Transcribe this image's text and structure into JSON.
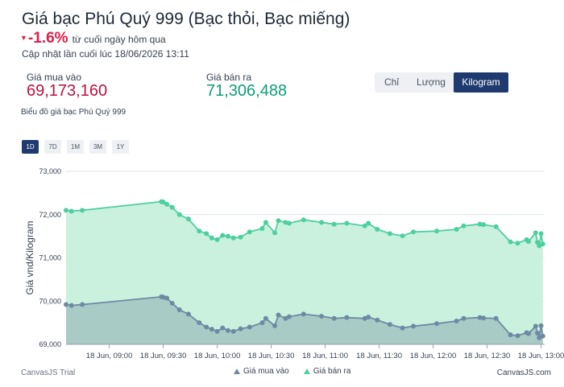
{
  "header": {
    "title": "Giá bạc Phú Quý 999 (Bạc thỏi, Bạc miếng)",
    "change_pct": "-1.6%",
    "change_since": "từ cuối ngày hôm qua",
    "updated": "Cập nhật lần cuối lúc 18/06/2026 13:11"
  },
  "prices": {
    "buy_label": "Giá mua vào",
    "buy_value": "69,173,160",
    "sell_label": "Giá bán ra",
    "sell_value": "71,306,488"
  },
  "units": [
    {
      "label": "Chỉ",
      "active": false
    },
    {
      "label": "Lượng",
      "active": false
    },
    {
      "label": "Kilogram",
      "active": true
    }
  ],
  "chart_caption": "Biểu đồ giá bạc Phú Quý 999",
  "ranges": [
    {
      "label": "1D",
      "active": true
    },
    {
      "label": "7D",
      "active": false
    },
    {
      "label": "1M",
      "active": false
    },
    {
      "label": "3M",
      "active": false
    },
    {
      "label": "1Y",
      "active": false
    }
  ],
  "colors": {
    "buy": "#6e8aa3",
    "sell": "#4ecf9f",
    "buy_fill": "#a8cbc6",
    "sell_fill": "#c9f1de",
    "accent": "#1e3a6e",
    "negative": "#e11d48"
  },
  "credits": {
    "left": "CanvasJS Trial",
    "right": "CanvasJS.com"
  },
  "chart_data": {
    "type": "area",
    "ylabel": "Giá vnd/Kilogram",
    "ylim": [
      69000,
      73000
    ],
    "y_ticks": [
      "73,000",
      "72,000",
      "71,000",
      "70,000",
      "69,000"
    ],
    "x_tick_labels": [
      "18 Jun, 09:00",
      "18 Jun, 09:30",
      "18 Jun, 10:00",
      "18 Jun, 10:30",
      "18 Jun, 11:00",
      "18 Jun, 11:30",
      "18 Jun, 12:00",
      "18 Jun, 12:30",
      "18 Jun, 13:00"
    ],
    "x_tick_minutes": [
      540,
      570,
      600,
      630,
      660,
      690,
      720,
      750,
      780
    ],
    "x_range_minutes": [
      516,
      782
    ],
    "grid": "horizontal",
    "legend": "bottom",
    "series": [
      {
        "name": "Giá mua vào",
        "minutes": [
          516,
          519,
          525,
          569,
          570,
          572,
          575,
          579,
          584,
          590,
          594,
          597,
          600,
          603,
          606,
          609,
          613,
          618,
          625,
          627,
          632,
          634,
          638,
          640,
          648,
          658,
          665,
          672,
          682,
          684,
          689,
          696,
          703,
          709,
          722,
          733,
          737,
          746,
          748,
          755,
          763,
          767,
          772,
          773,
          777,
          778,
          779,
          780,
          781
        ],
        "values": [
          69920,
          69900,
          69920,
          70100,
          70090,
          70070,
          69950,
          69800,
          69700,
          69500,
          69400,
          69350,
          69300,
          69380,
          69320,
          69300,
          69360,
          69400,
          69500,
          69600,
          69430,
          69680,
          69600,
          69640,
          69700,
          69650,
          69600,
          69620,
          69600,
          69630,
          69560,
          69460,
          69380,
          69420,
          69480,
          69540,
          69600,
          69620,
          69610,
          69600,
          69220,
          69200,
          69270,
          69250,
          69420,
          69260,
          69150,
          69430,
          69190
        ]
      },
      {
        "name": "Giá bán ra",
        "minutes": [
          516,
          519,
          525,
          569,
          570,
          572,
          575,
          579,
          584,
          590,
          594,
          597,
          600,
          603,
          606,
          609,
          613,
          618,
          625,
          627,
          632,
          634,
          638,
          640,
          648,
          658,
          665,
          672,
          682,
          684,
          689,
          696,
          703,
          709,
          722,
          733,
          737,
          746,
          748,
          755,
          763,
          767,
          772,
          773,
          777,
          778,
          779,
          780,
          781
        ],
        "values": [
          72100,
          72080,
          72100,
          72300,
          72290,
          72240,
          72170,
          72000,
          71900,
          71620,
          71560,
          71460,
          71420,
          71520,
          71500,
          71460,
          71480,
          71600,
          71680,
          71820,
          71580,
          71860,
          71820,
          71800,
          71880,
          71820,
          71780,
          71800,
          71740,
          71800,
          71660,
          71560,
          71510,
          71600,
          71620,
          71660,
          71740,
          71780,
          71770,
          71720,
          71370,
          71340,
          71420,
          71380,
          71580,
          71360,
          71280,
          71560,
          71320
        ]
      }
    ]
  }
}
